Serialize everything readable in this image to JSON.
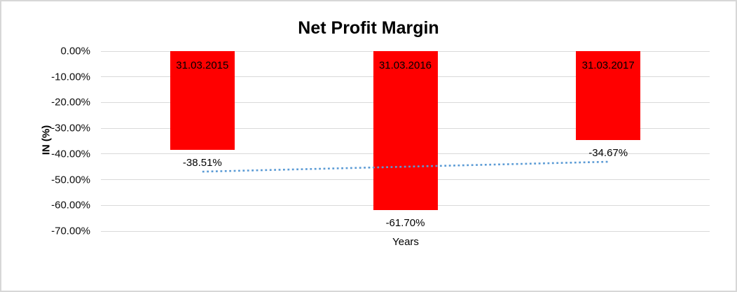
{
  "chart_data": {
    "type": "bar",
    "title": "Net Profit Margin",
    "xlabel": "Years",
    "ylabel": "IN (%)",
    "categories": [
      "31.03.2015",
      "31.03.2016",
      "31.03.2017"
    ],
    "values": [
      -38.51,
      -61.7,
      -34.67
    ],
    "value_labels": [
      "-38.51%",
      "-61.70%",
      "-34.67%"
    ],
    "ylim": [
      -70,
      0
    ],
    "ytick_labels": [
      "0.00%",
      "-10.00%",
      "-20.00%",
      "-30.00%",
      "-40.00%",
      "-50.00%",
      "-60.00%",
      "-70.00%"
    ],
    "ytick_values": [
      0,
      -10,
      -20,
      -30,
      -40,
      -50,
      -60,
      -70
    ],
    "grid": true,
    "legend": false,
    "bar_color": "#ff0000",
    "gridline_color": "#d9d9d9",
    "border_color": "#d7d7d7",
    "text_color": "#000000",
    "trendline": {
      "type": "linear",
      "style": "dotted",
      "color": "#5b9bd5",
      "start_value": -46.88,
      "end_value": -43.04
    }
  }
}
